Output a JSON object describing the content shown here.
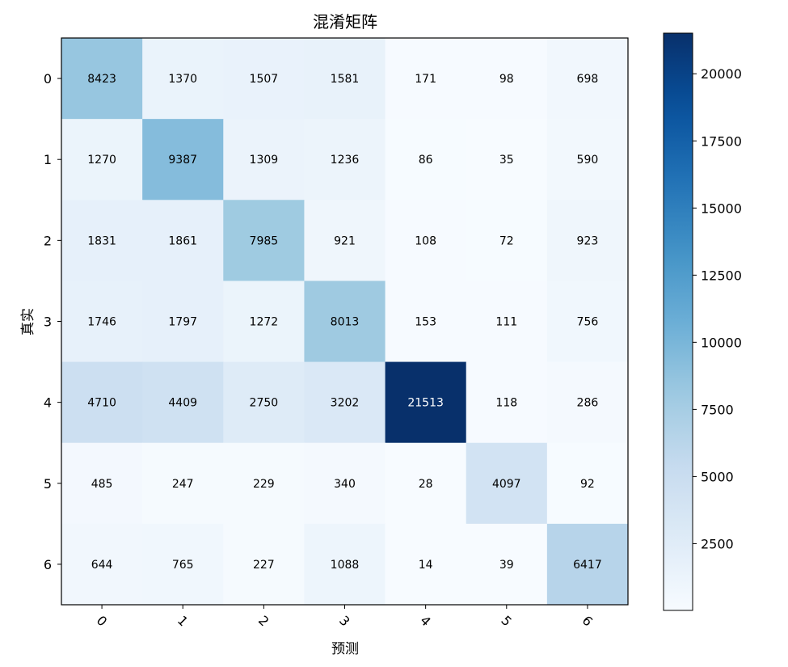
{
  "chart_data": {
    "type": "heatmap",
    "title": "混淆矩阵",
    "xlabel": "预测",
    "ylabel": "真实",
    "x_categories": [
      "0",
      "1",
      "2",
      "3",
      "4",
      "5",
      "6"
    ],
    "y_categories": [
      "0",
      "1",
      "2",
      "3",
      "4",
      "5",
      "6"
    ],
    "values": [
      [
        8423,
        1370,
        1507,
        1581,
        171,
        98,
        698
      ],
      [
        1270,
        9387,
        1309,
        1236,
        86,
        35,
        590
      ],
      [
        1831,
        1861,
        7985,
        921,
        108,
        72,
        923
      ],
      [
        1746,
        1797,
        1272,
        8013,
        153,
        111,
        756
      ],
      [
        4710,
        4409,
        2750,
        3202,
        21513,
        118,
        286
      ],
      [
        485,
        247,
        229,
        340,
        28,
        4097,
        92
      ],
      [
        644,
        765,
        227,
        1088,
        14,
        39,
        6417
      ]
    ],
    "colormap": "Blues",
    "color_range": [
      14,
      21513
    ],
    "colorbar_ticks": [
      2500,
      5000,
      7500,
      10000,
      12500,
      15000,
      17500,
      20000
    ],
    "x_tick_rotation_deg": 45
  }
}
